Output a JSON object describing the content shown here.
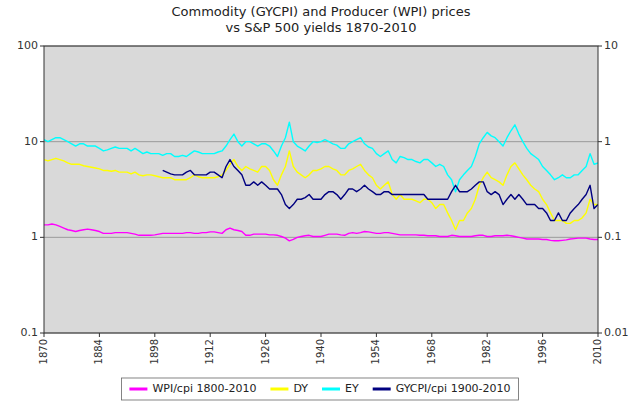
{
  "chart_data": {
    "type": "line",
    "title": "Commodity (GYCPI) and Producer (WPI) prices\nvs S&P 500 yields 1870-2010",
    "log": "y",
    "grid": true,
    "legend": "bottom",
    "xlim": [
      1870,
      2010
    ],
    "xticks": [
      1870,
      1884,
      1898,
      1912,
      1926,
      1940,
      1954,
      1968,
      1982,
      1996,
      2010
    ],
    "ylim": [
      0.1,
      100
    ],
    "yticks": [
      0.1,
      1,
      10,
      100
    ],
    "y2lim": [
      0.01,
      10
    ],
    "y2ticks": [
      0.01,
      0.1,
      1,
      10
    ],
    "x": [
      1870,
      1871,
      1872,
      1873,
      1874,
      1875,
      1876,
      1877,
      1878,
      1879,
      1880,
      1881,
      1882,
      1883,
      1884,
      1885,
      1886,
      1887,
      1888,
      1889,
      1890,
      1891,
      1892,
      1893,
      1894,
      1895,
      1896,
      1897,
      1898,
      1899,
      1900,
      1901,
      1902,
      1903,
      1904,
      1905,
      1906,
      1907,
      1908,
      1909,
      1910,
      1911,
      1912,
      1913,
      1914,
      1915,
      1916,
      1917,
      1918,
      1919,
      1920,
      1921,
      1922,
      1923,
      1924,
      1925,
      1926,
      1927,
      1928,
      1929,
      1930,
      1931,
      1932,
      1933,
      1934,
      1935,
      1936,
      1937,
      1938,
      1939,
      1940,
      1941,
      1942,
      1943,
      1944,
      1945,
      1946,
      1947,
      1948,
      1949,
      1950,
      1951,
      1952,
      1953,
      1954,
      1955,
      1956,
      1957,
      1958,
      1959,
      1960,
      1961,
      1962,
      1963,
      1964,
      1965,
      1966,
      1967,
      1968,
      1969,
      1970,
      1971,
      1972,
      1973,
      1974,
      1975,
      1976,
      1977,
      1978,
      1979,
      1980,
      1981,
      1982,
      1983,
      1984,
      1985,
      1986,
      1987,
      1988,
      1989,
      1990,
      1991,
      1992,
      1993,
      1994,
      1995,
      1996,
      1997,
      1998,
      1999,
      2000,
      2001,
      2002,
      2003,
      2004,
      2005,
      2006,
      2007,
      2008,
      2009,
      2010
    ],
    "series": [
      {
        "name": "WPI/cpi 1800-2010",
        "color": "#ff00ff",
        "values": [
          1.35,
          1.35,
          1.38,
          1.35,
          1.3,
          1.25,
          1.2,
          1.18,
          1.15,
          1.18,
          1.2,
          1.22,
          1.2,
          1.18,
          1.15,
          1.1,
          1.1,
          1.1,
          1.12,
          1.12,
          1.12,
          1.12,
          1.1,
          1.08,
          1.05,
          1.05,
          1.05,
          1.05,
          1.06,
          1.08,
          1.1,
          1.1,
          1.1,
          1.1,
          1.1,
          1.1,
          1.12,
          1.12,
          1.1,
          1.1,
          1.12,
          1.12,
          1.14,
          1.14,
          1.12,
          1.1,
          1.2,
          1.25,
          1.2,
          1.18,
          1.15,
          1.05,
          1.05,
          1.08,
          1.08,
          1.08,
          1.08,
          1.06,
          1.06,
          1.05,
          1.02,
          0.98,
          0.92,
          0.95,
          1.0,
          1.02,
          1.04,
          1.05,
          1.02,
          1.02,
          1.02,
          1.05,
          1.08,
          1.08,
          1.08,
          1.06,
          1.05,
          1.1,
          1.12,
          1.1,
          1.12,
          1.15,
          1.14,
          1.12,
          1.1,
          1.1,
          1.12,
          1.12,
          1.1,
          1.08,
          1.06,
          1.06,
          1.06,
          1.06,
          1.06,
          1.05,
          1.05,
          1.04,
          1.04,
          1.04,
          1.02,
          1.02,
          1.02,
          1.05,
          1.04,
          1.02,
          1.02,
          1.02,
          1.02,
          1.04,
          1.05,
          1.05,
          1.02,
          1.02,
          1.04,
          1.04,
          1.04,
          1.05,
          1.04,
          1.02,
          1.0,
          0.98,
          0.96,
          0.96,
          0.96,
          0.96,
          0.95,
          0.95,
          0.93,
          0.92,
          0.92,
          0.93,
          0.94,
          0.96,
          0.97,
          0.98,
          0.98,
          0.98,
          0.96,
          0.95,
          0.95
        ]
      },
      {
        "name": "DY",
        "color": "#ffff00",
        "values": [
          6.5,
          6.3,
          6.5,
          6.7,
          6.5,
          6.3,
          6.0,
          5.8,
          5.8,
          5.8,
          5.6,
          5.5,
          5.4,
          5.3,
          5.2,
          5.0,
          5.0,
          4.9,
          5.0,
          4.8,
          4.8,
          4.8,
          4.6,
          4.8,
          4.5,
          4.4,
          4.5,
          4.5,
          4.4,
          4.3,
          4.2,
          4.2,
          4.2,
          4.0,
          4.0,
          4.0,
          4.0,
          4.2,
          4.5,
          4.3,
          4.2,
          4.2,
          4.2,
          4.2,
          4.3,
          4.5,
          5.0,
          5.8,
          6.5,
          5.5,
          5.0,
          5.5,
          5.2,
          5.0,
          4.8,
          5.5,
          5.5,
          5.0,
          4.0,
          3.5,
          4.5,
          5.5,
          8.0,
          5.5,
          4.8,
          4.5,
          4.2,
          4.5,
          5.0,
          5.0,
          5.2,
          5.5,
          5.5,
          5.2,
          5.0,
          4.5,
          4.5,
          5.0,
          5.2,
          5.5,
          5.8,
          5.0,
          4.5,
          4.2,
          3.5,
          3.2,
          3.5,
          3.8,
          2.8,
          2.5,
          2.8,
          2.5,
          2.5,
          2.5,
          2.4,
          2.3,
          2.5,
          2.5,
          2.3,
          2.0,
          2.2,
          2.2,
          1.8,
          1.5,
          1.2,
          1.5,
          1.5,
          1.8,
          2.0,
          2.5,
          3.5,
          4.2,
          4.8,
          4.2,
          4.0,
          3.8,
          3.5,
          4.5,
          5.5,
          6.0,
          5.2,
          4.5,
          4.0,
          3.5,
          3.2,
          3.0,
          2.5,
          2.2,
          1.8,
          1.5,
          1.5,
          1.5,
          1.4,
          1.4,
          1.5,
          1.5,
          1.6,
          1.8,
          2.5,
          2.2,
          2.2
        ]
      },
      {
        "name": "EY",
        "color": "#00ffff",
        "values": [
          10.5,
          10.0,
          10.5,
          11.0,
          11.0,
          10.5,
          10.0,
          9.5,
          9.0,
          9.5,
          9.5,
          9.0,
          9.0,
          9.0,
          8.5,
          8.0,
          8.2,
          8.5,
          8.8,
          8.5,
          8.5,
          8.5,
          8.0,
          8.5,
          8.0,
          7.5,
          7.8,
          7.5,
          7.5,
          7.5,
          7.2,
          7.5,
          7.5,
          7.0,
          7.0,
          7.2,
          7.0,
          7.5,
          8.0,
          7.8,
          7.5,
          7.5,
          7.5,
          7.5,
          7.8,
          8.0,
          9.0,
          10.5,
          12.0,
          10.0,
          9.0,
          10.0,
          10.0,
          9.5,
          9.0,
          9.5,
          9.5,
          9.0,
          8.0,
          7.0,
          9.0,
          11.0,
          16.0,
          10.0,
          9.0,
          8.5,
          8.0,
          9.0,
          10.0,
          9.8,
          10.0,
          10.5,
          10.0,
          9.5,
          9.2,
          8.5,
          8.5,
          9.5,
          10.0,
          10.5,
          11.0,
          9.5,
          8.8,
          8.5,
          7.5,
          7.0,
          7.5,
          8.0,
          6.5,
          6.0,
          7.0,
          6.8,
          6.5,
          6.5,
          6.2,
          6.0,
          6.5,
          6.5,
          6.0,
          5.5,
          5.8,
          5.5,
          4.5,
          4.0,
          3.0,
          4.0,
          4.5,
          5.0,
          5.5,
          7.0,
          9.5,
          11.0,
          12.5,
          11.5,
          11.0,
          10.0,
          9.0,
          11.0,
          13.0,
          15.0,
          12.0,
          10.0,
          8.5,
          7.5,
          7.0,
          6.5,
          5.5,
          5.0,
          4.5,
          4.0,
          4.2,
          4.5,
          4.2,
          4.2,
          4.5,
          4.5,
          5.0,
          5.5,
          7.5,
          5.8,
          6.0
        ]
      },
      {
        "name": "GYCPI/cpi 1900-2010",
        "color": "#000080",
        "values": [
          null,
          null,
          null,
          null,
          null,
          null,
          null,
          null,
          null,
          null,
          null,
          null,
          null,
          null,
          null,
          null,
          null,
          null,
          null,
          null,
          null,
          null,
          null,
          null,
          null,
          null,
          null,
          null,
          null,
          null,
          5.0,
          4.8,
          4.6,
          4.5,
          4.5,
          4.5,
          4.8,
          5.0,
          4.5,
          4.5,
          4.5,
          4.5,
          4.8,
          4.8,
          4.5,
          4.2,
          5.5,
          6.5,
          5.5,
          5.0,
          4.5,
          3.5,
          3.5,
          3.8,
          3.5,
          3.8,
          3.5,
          3.2,
          3.2,
          3.2,
          2.8,
          2.2,
          2.0,
          2.2,
          2.5,
          2.5,
          2.6,
          2.8,
          2.5,
          2.5,
          2.5,
          2.8,
          3.0,
          3.0,
          2.8,
          2.5,
          2.8,
          3.2,
          3.2,
          3.0,
          3.2,
          3.5,
          3.2,
          3.0,
          2.8,
          2.8,
          3.0,
          3.0,
          2.8,
          2.8,
          2.8,
          2.8,
          2.8,
          2.8,
          2.8,
          2.8,
          2.8,
          2.5,
          2.5,
          2.5,
          2.5,
          2.5,
          2.5,
          3.0,
          3.5,
          3.0,
          3.0,
          3.0,
          3.2,
          3.5,
          3.8,
          3.8,
          3.0,
          2.8,
          3.0,
          2.8,
          2.2,
          2.5,
          2.8,
          2.5,
          2.8,
          2.5,
          2.2,
          2.2,
          2.2,
          2.0,
          2.0,
          1.8,
          1.5,
          1.5,
          1.8,
          1.5,
          1.5,
          1.8,
          2.0,
          2.2,
          2.5,
          2.8,
          3.5,
          2.0,
          2.2
        ]
      }
    ]
  }
}
